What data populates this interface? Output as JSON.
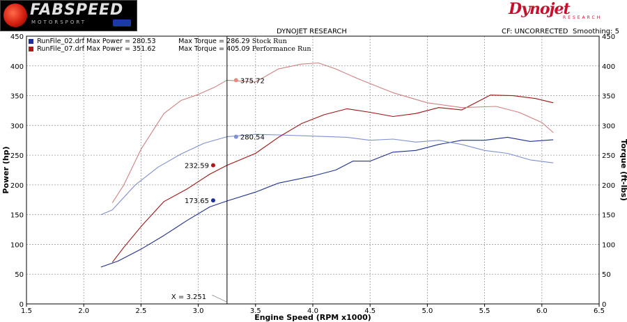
{
  "branding": {
    "left_logo_text": "FABSPEED",
    "left_logo_sub": "MOTORSPORT",
    "right_logo_text": "Dynojet",
    "right_logo_sub": "RESEARCH"
  },
  "header": {
    "title": "DYNOJET RESEARCH",
    "cf": "CF: UNCORRECTED",
    "smoothing": "Smoothing: 5"
  },
  "legend": [
    {
      "file": "RunFile_02.drf",
      "max_power": "Max Power = 280.53",
      "max_torque": "Max Torque = 286.29",
      "name": "Stock Run",
      "color": "#1f2fa0"
    },
    {
      "file": "RunFile_07.drf",
      "max_power": "Max Power = 351.62",
      "max_torque": "Max Torque = 405.09",
      "name": "Performance Run",
      "color": "#b01818"
    }
  ],
  "colors": {
    "stock_power": "#1f2f90",
    "stock_torque": "#7f8fd0",
    "perf_power": "#9c1414",
    "perf_torque": "#d08080",
    "grid": "#999999",
    "cursor": "#000000"
  },
  "chart_data": {
    "type": "line",
    "xlabel": "Engine Speed (RPM x1000)",
    "ylabel_left": "Power (hp)",
    "ylabel_right": "Torque (ft-lbs)",
    "xlim": [
      1.5,
      6.5
    ],
    "ylim_left": [
      0,
      450
    ],
    "ylim_right": [
      0,
      450
    ],
    "x_ticks": [
      "1.5",
      "2.0",
      "2.5",
      "3.0",
      "3.5",
      "4.0",
      "4.5",
      "5.0",
      "5.5",
      "6.0",
      "6.5"
    ],
    "y_ticks": [
      "0",
      "50",
      "100",
      "150",
      "200",
      "250",
      "300",
      "350",
      "400",
      "450"
    ],
    "grid": true,
    "cursor": {
      "x": 3.251,
      "label": "X = 3.251"
    },
    "point_labels": [
      {
        "text": "173.65",
        "x": 3.13,
        "y": 174,
        "color": "#1f2fa0"
      },
      {
        "text": "232.59",
        "x": 3.13,
        "y": 233,
        "color": "#b01818"
      },
      {
        "text": "280.54",
        "x": 3.33,
        "y": 281,
        "color": "#7f8fd0"
      },
      {
        "text": "375.72",
        "x": 3.33,
        "y": 376,
        "color": "#e08a80"
      }
    ],
    "series": [
      {
        "name": "Stock Run Power",
        "axis": "left",
        "x": [
          2.15,
          2.3,
          2.5,
          2.7,
          2.9,
          3.1,
          3.25,
          3.5,
          3.7,
          4.0,
          4.2,
          4.35,
          4.5,
          4.7,
          4.9,
          5.1,
          5.3,
          5.5,
          5.7,
          5.9,
          6.1
        ],
        "values": [
          62,
          72,
          92,
          115,
          140,
          163,
          173,
          188,
          203,
          215,
          225,
          240,
          240,
          255,
          258,
          268,
          275,
          275,
          280,
          273,
          276
        ]
      },
      {
        "name": "Stock Run Torque",
        "axis": "right",
        "x": [
          2.15,
          2.25,
          2.45,
          2.65,
          2.85,
          3.05,
          3.25,
          3.5,
          3.7,
          4.0,
          4.3,
          4.5,
          4.7,
          4.9,
          5.1,
          5.3,
          5.5,
          5.7,
          5.9,
          6.1
        ],
        "values": [
          150,
          158,
          200,
          230,
          252,
          270,
          281,
          285,
          284,
          282,
          280,
          275,
          277,
          272,
          275,
          268,
          258,
          253,
          242,
          237
        ]
      },
      {
        "name": "Performance Run Power",
        "axis": "left",
        "x": [
          2.25,
          2.35,
          2.5,
          2.7,
          2.9,
          3.1,
          3.25,
          3.5,
          3.7,
          3.9,
          4.1,
          4.3,
          4.5,
          4.7,
          4.9,
          5.1,
          5.3,
          5.55,
          5.75,
          5.95,
          6.1
        ],
        "values": [
          70,
          95,
          130,
          172,
          193,
          218,
          233,
          253,
          280,
          303,
          318,
          328,
          322,
          315,
          320,
          330,
          326,
          351,
          350,
          345,
          338
        ]
      },
      {
        "name": "Performance Run Torque",
        "axis": "right",
        "x": [
          2.25,
          2.35,
          2.5,
          2.7,
          2.85,
          3.0,
          3.15,
          3.25,
          3.5,
          3.7,
          3.9,
          4.05,
          4.2,
          4.4,
          4.7,
          5.0,
          5.3,
          5.6,
          5.8,
          6.0,
          6.1
        ],
        "values": [
          170,
          200,
          260,
          320,
          342,
          352,
          365,
          376,
          373,
          395,
          403,
          405,
          395,
          378,
          355,
          338,
          330,
          332,
          322,
          305,
          288
        ]
      }
    ]
  }
}
